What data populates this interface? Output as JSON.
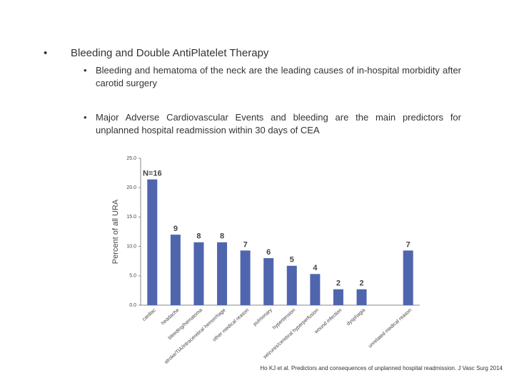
{
  "slide": {
    "bullet": "Bleeding and Double AntiPlatelet Therapy",
    "sub_bullets": [
      "Bleeding and hematoma of the neck are the leading causes of in-hospital morbidity after carotid surgery",
      "Major Adverse Cardiovascular Events and bleeding are the main predictors for unplanned hospital readmission within 30 days of CEA"
    ],
    "citation": "Ho KJ et al. Predictors and consequences of unplanned hospital readmission. J Vasc Surg 2014"
  },
  "chart_data": {
    "type": "bar",
    "ylabel": "Percent of all URA",
    "categories": [
      "cardiac",
      "headache",
      "bleeding/hematoma",
      "stroke/TIA/intracerebral hemorrhage",
      "other medical reason",
      "pulmonary",
      "hypertension",
      "seizures/cerebral hyperperfusion",
      "wound infection",
      "dysphagia",
      null,
      "unrelated medical reason"
    ],
    "values": [
      21.4,
      12.0,
      10.7,
      10.7,
      9.3,
      8.0,
      6.7,
      5.3,
      2.7,
      2.7,
      null,
      9.3
    ],
    "counts": [
      {
        "value": 16,
        "label": "N=16"
      },
      9,
      8,
      8,
      7,
      6,
      5,
      4,
      2,
      2,
      null,
      7
    ],
    "color": "#4f65ad",
    "ylim": [
      0,
      25
    ],
    "yticks": [
      {
        "value": 0,
        "label": "0.0"
      },
      {
        "value": 5,
        "label": "5.0"
      },
      {
        "value": 10,
        "label": "10.0"
      },
      {
        "value": 15,
        "label": "15.0"
      },
      {
        "value": 20,
        "label": "20.0"
      },
      {
        "value": 25,
        "label": "25.0"
      }
    ],
    "grid": false
  }
}
